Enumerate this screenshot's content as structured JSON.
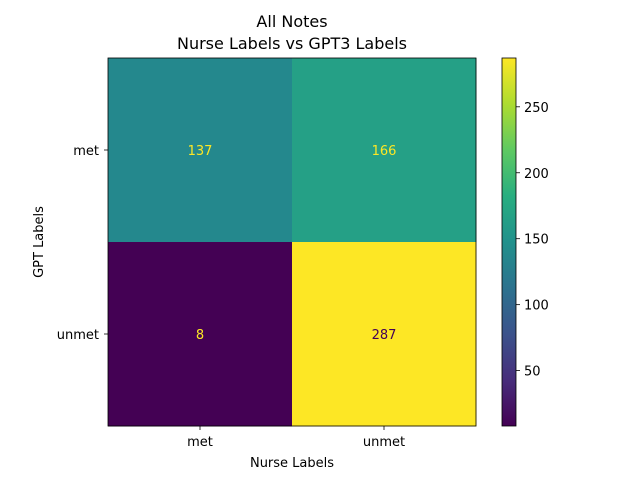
{
  "chart_data": {
    "type": "heatmap",
    "title": "All Notes",
    "subtitle": "Nurse Labels vs GPT3 Labels",
    "xlabel": "Nurse Labels",
    "ylabel": "GPT Labels",
    "x_categories": [
      "met",
      "unmet"
    ],
    "y_categories": [
      "met",
      "unmet"
    ],
    "values": [
      [
        137,
        166
      ],
      [
        8,
        287
      ]
    ],
    "cell_labels": [
      [
        "137",
        "166"
      ],
      [
        "8",
        "287"
      ]
    ],
    "colormap": "viridis",
    "vmin": 8,
    "vmax": 287,
    "colorbar_ticks": [
      50,
      100,
      150,
      200,
      250
    ],
    "colorbar_tick_labels": [
      "50",
      "100",
      "150",
      "200",
      "250"
    ],
    "grid": false
  }
}
